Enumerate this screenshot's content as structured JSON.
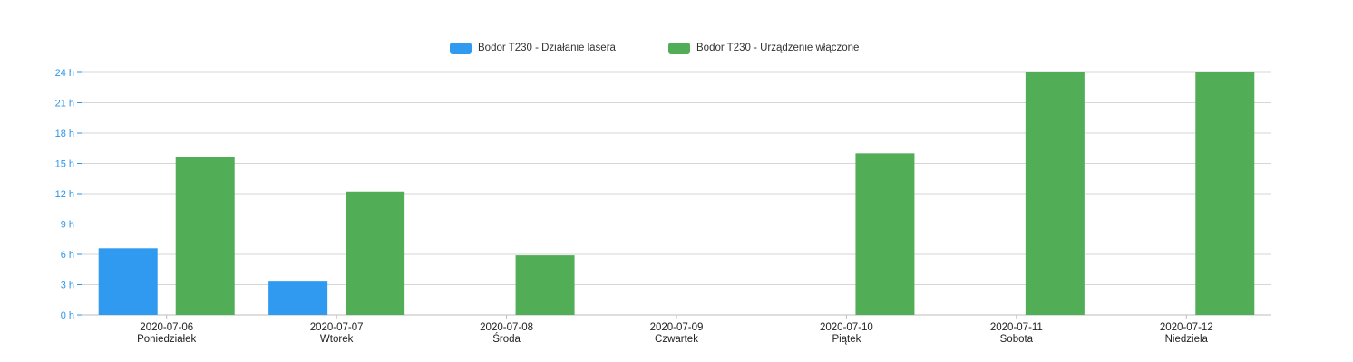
{
  "chart_data": {
    "type": "bar",
    "categories": [
      "2020-07-06",
      "2020-07-07",
      "2020-07-08",
      "2020-07-09",
      "2020-07-10",
      "2020-07-11",
      "2020-07-12"
    ],
    "category_sublabels": [
      "Poniedziałek",
      "Wtorek",
      "Środa",
      "Czwartek",
      "Piątek",
      "Sobota",
      "Niedziela"
    ],
    "series": [
      {
        "name": "Bodor T230 - Działanie lasera",
        "color": "#2f9af0",
        "values": [
          6.6,
          3.3,
          0,
          0,
          0,
          0,
          0
        ]
      },
      {
        "name": "Bodor T230 - Urządzenie włączone",
        "color": "#52ad57",
        "values": [
          15.6,
          12.2,
          5.9,
          0,
          16.0,
          24,
          24
        ]
      }
    ],
    "yticks": [
      "0 h",
      "3 h",
      "6 h",
      "9 h",
      "12 h",
      "15 h",
      "18 h",
      "21 h",
      "24 h"
    ],
    "ylim": [
      0,
      24
    ],
    "ystep": 3,
    "grid": true,
    "legend_position": "top-center",
    "xlabel": "",
    "ylabel": ""
  }
}
